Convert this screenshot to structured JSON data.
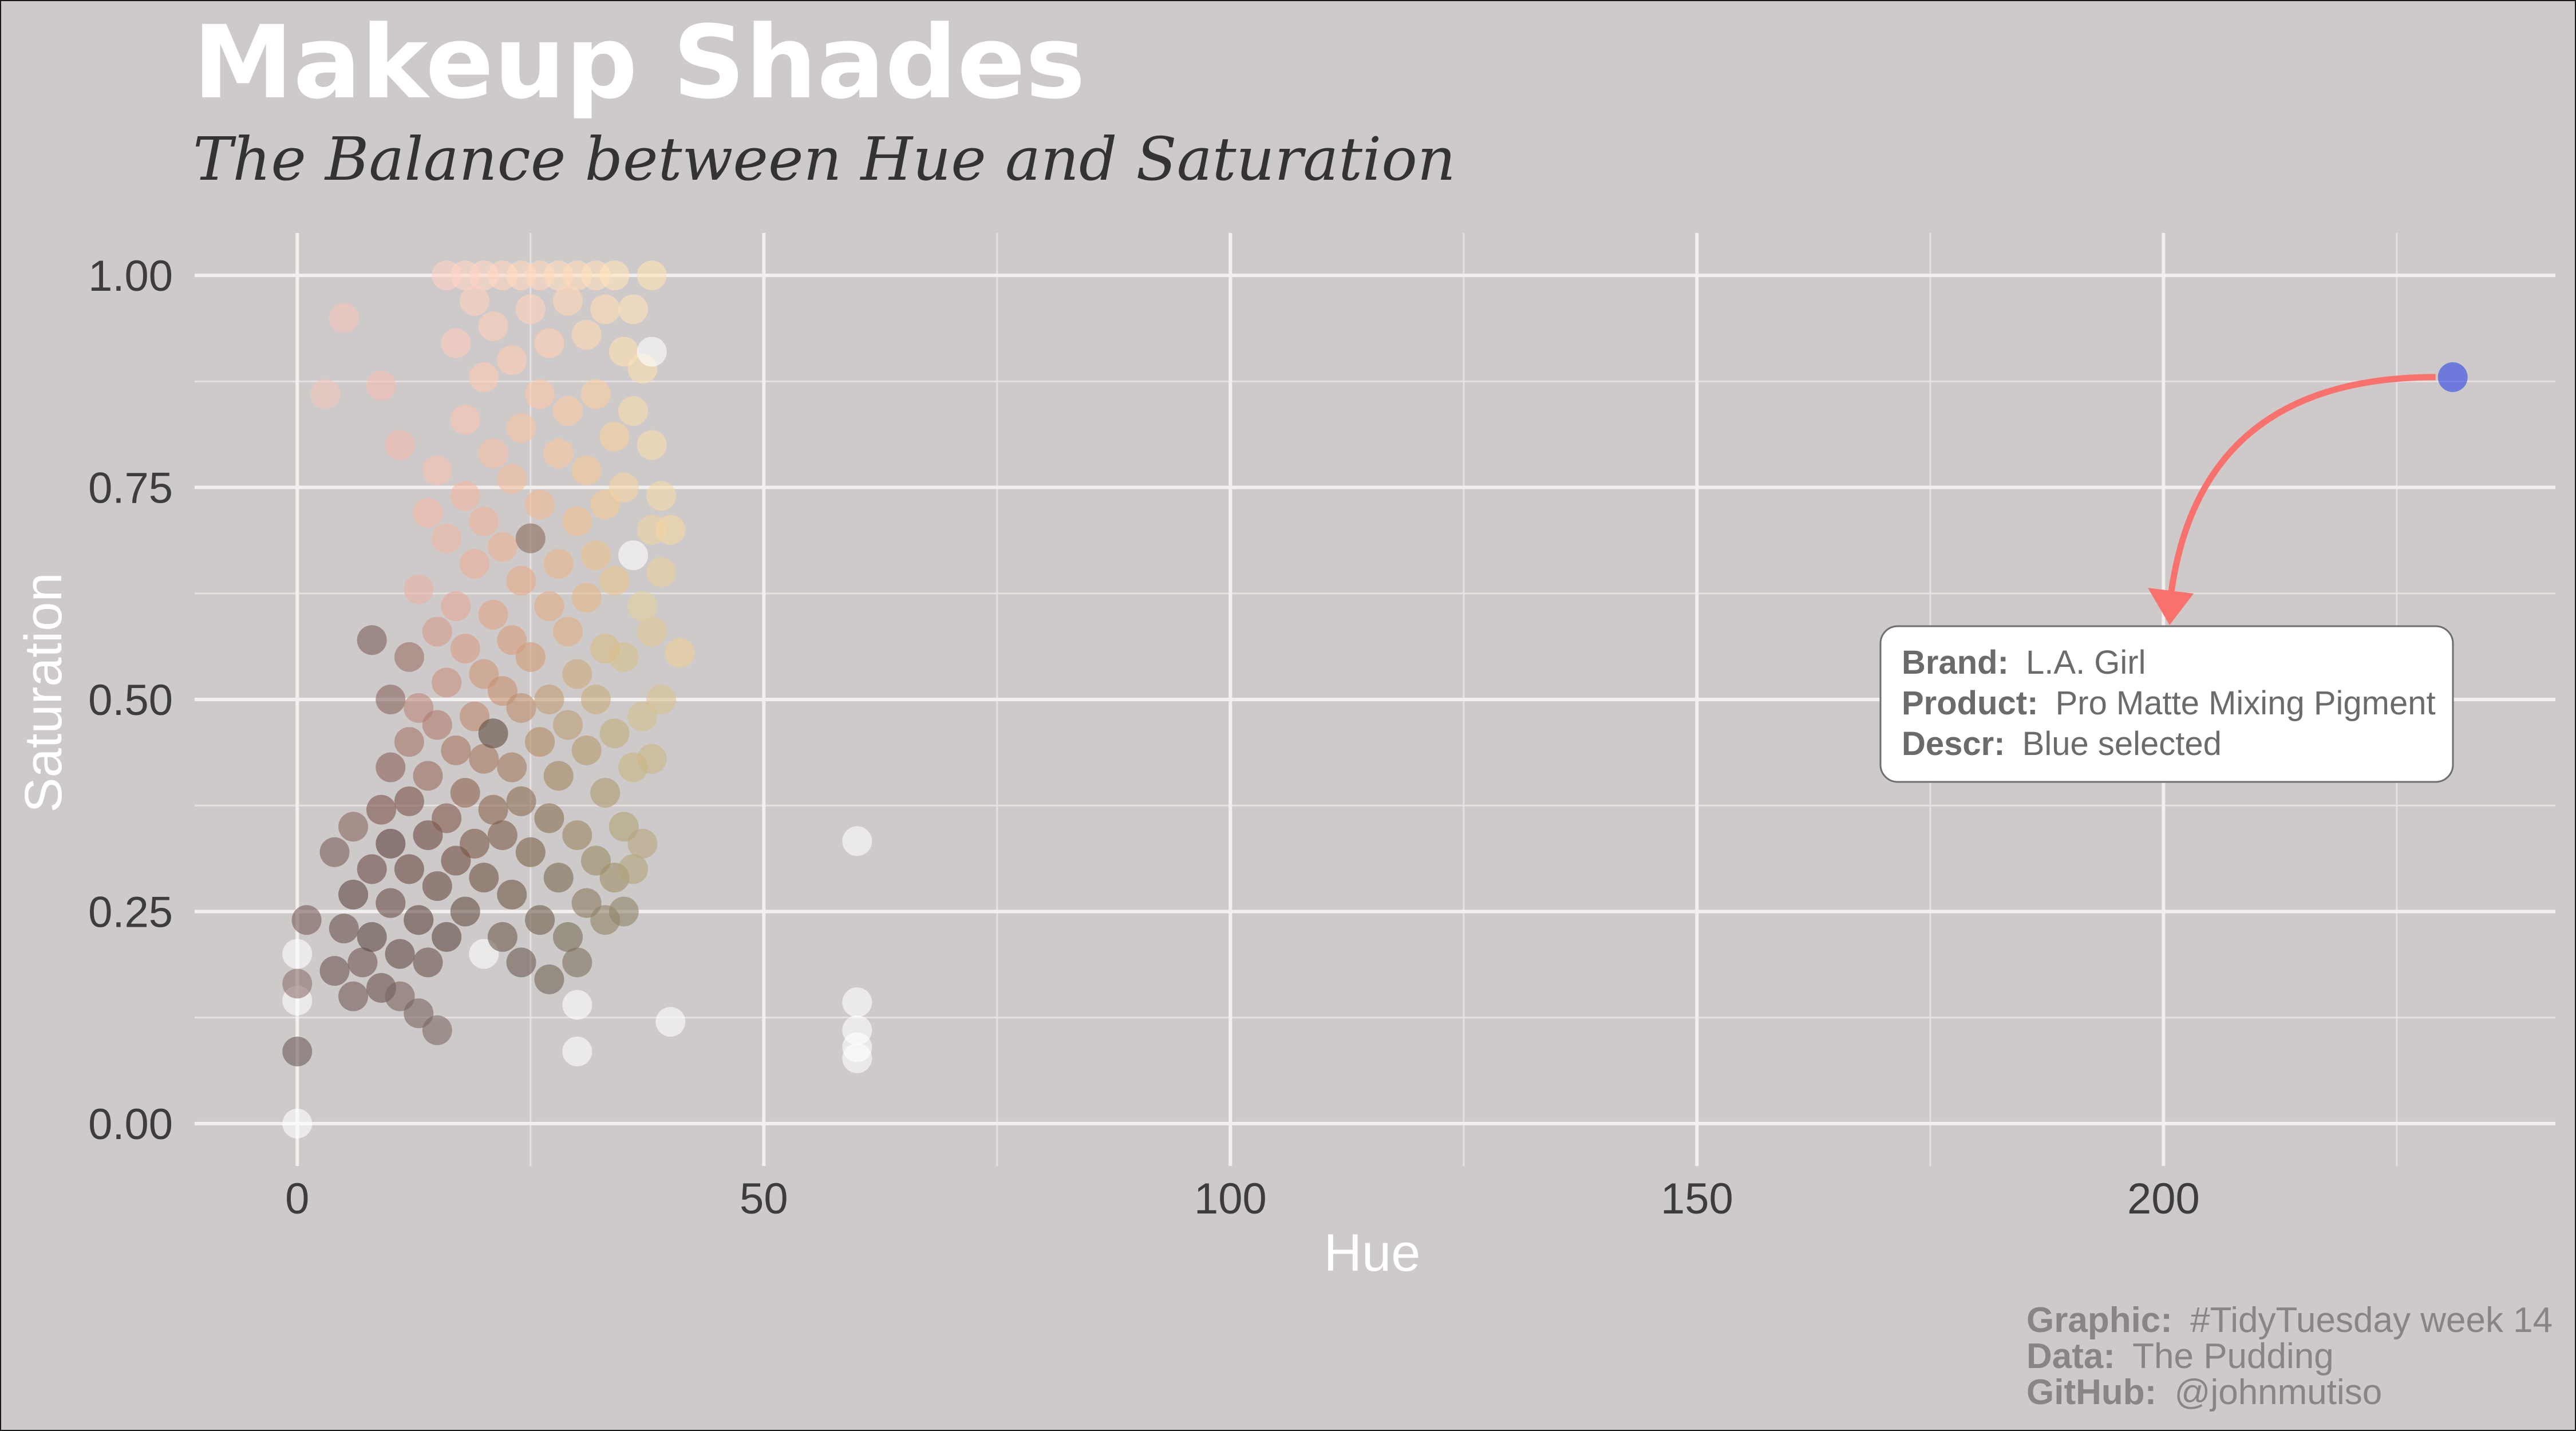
{
  "chart_data": {
    "type": "scatter",
    "title": "Makeup Shades",
    "subtitle": "The Balance between Hue and Saturation",
    "xlabel": "Hue",
    "ylabel": "Saturation",
    "xlim": [
      -11,
      242
    ],
    "ylim": [
      -0.05,
      1.05
    ],
    "x_ticks": [
      {
        "value": 0,
        "label": "0"
      },
      {
        "value": 50,
        "label": "50"
      },
      {
        "value": 100,
        "label": "100"
      },
      {
        "value": 150,
        "label": "150"
      },
      {
        "value": 200,
        "label": "200"
      }
    ],
    "y_ticks": [
      {
        "value": 0,
        "label": "0.00"
      },
      {
        "value": 0.25,
        "label": "0.25"
      },
      {
        "value": 0.5,
        "label": "0.50"
      },
      {
        "value": 0.75,
        "label": "0.75"
      },
      {
        "value": 1.0,
        "label": "1.00"
      }
    ],
    "grid": true,
    "point_opacity": 0.6,
    "background_color": "#cecac9",
    "points": [
      {
        "x": 0,
        "y": 0.0,
        "color": "#ffffff"
      },
      {
        "x": 0,
        "y": 0.085,
        "color": "#6e5c5a"
      },
      {
        "x": 0,
        "y": 0.145,
        "color": "#ffffff"
      },
      {
        "x": 0,
        "y": 0.165,
        "color": "#8d7270"
      },
      {
        "x": 0,
        "y": 0.2,
        "color": "#ffffff"
      },
      {
        "x": 1,
        "y": 0.24,
        "color": "#7a5a58"
      },
      {
        "x": 3,
        "y": 0.86,
        "color": "#f2c4bd"
      },
      {
        "x": 4,
        "y": 0.18,
        "color": "#6d5553"
      },
      {
        "x": 4,
        "y": 0.32,
        "color": "#7d5e5a"
      },
      {
        "x": 5,
        "y": 0.95,
        "color": "#f6c3bb"
      },
      {
        "x": 5,
        "y": 0.23,
        "color": "#6a5250"
      },
      {
        "x": 6,
        "y": 0.15,
        "color": "#735c59"
      },
      {
        "x": 6,
        "y": 0.27,
        "color": "#5f4644"
      },
      {
        "x": 6,
        "y": 0.35,
        "color": "#8a6863"
      },
      {
        "x": 7,
        "y": 0.19,
        "color": "#6f5552"
      },
      {
        "x": 8,
        "y": 0.3,
        "color": "#6c4b48"
      },
      {
        "x": 8,
        "y": 0.22,
        "color": "#5e4744"
      },
      {
        "x": 8,
        "y": 0.57,
        "color": "#7d5f5b"
      },
      {
        "x": 9,
        "y": 0.87,
        "color": "#f5bcb2"
      },
      {
        "x": 9,
        "y": 0.37,
        "color": "#7b544f"
      },
      {
        "x": 9,
        "y": 0.16,
        "color": "#6a514e"
      },
      {
        "x": 10,
        "y": 0.5,
        "color": "#8a6460"
      },
      {
        "x": 10,
        "y": 0.42,
        "color": "#8b5f59"
      },
      {
        "x": 10,
        "y": 0.33,
        "color": "#5e403d"
      },
      {
        "x": 10,
        "y": 0.26,
        "color": "#6a4c48"
      },
      {
        "x": 11,
        "y": 0.8,
        "color": "#f3b9ad"
      },
      {
        "x": 11,
        "y": 0.2,
        "color": "#634b47"
      },
      {
        "x": 11,
        "y": 0.15,
        "color": "#7a625e"
      },
      {
        "x": 12,
        "y": 0.55,
        "color": "#9b6f68"
      },
      {
        "x": 12,
        "y": 0.45,
        "color": "#a6746b"
      },
      {
        "x": 12,
        "y": 0.38,
        "color": "#7b514b"
      },
      {
        "x": 12,
        "y": 0.3,
        "color": "#6b4843"
      },
      {
        "x": 13,
        "y": 0.63,
        "color": "#e9b1a5"
      },
      {
        "x": 13,
        "y": 0.49,
        "color": "#b98679"
      },
      {
        "x": 13,
        "y": 0.24,
        "color": "#5e4641"
      },
      {
        "x": 13,
        "y": 0.13,
        "color": "#7a6460"
      },
      {
        "x": 14,
        "y": 0.72,
        "color": "#f6b8a9"
      },
      {
        "x": 14,
        "y": 0.41,
        "color": "#9a6a5f"
      },
      {
        "x": 14,
        "y": 0.34,
        "color": "#6e4a43"
      },
      {
        "x": 14,
        "y": 0.19,
        "color": "#6c534e"
      },
      {
        "x": 15,
        "y": 0.77,
        "color": "#f7c1b1"
      },
      {
        "x": 15,
        "y": 0.58,
        "color": "#d49a8a"
      },
      {
        "x": 15,
        "y": 0.47,
        "color": "#b07c6e"
      },
      {
        "x": 15,
        "y": 0.28,
        "color": "#6a4b44"
      },
      {
        "x": 15,
        "y": 0.11,
        "color": "#7d6864"
      },
      {
        "x": 16,
        "y": 1.0,
        "color": "#ffd2c6"
      },
      {
        "x": 16,
        "y": 0.69,
        "color": "#f1b6a3"
      },
      {
        "x": 16,
        "y": 0.52,
        "color": "#c98d7c"
      },
      {
        "x": 16,
        "y": 0.36,
        "color": "#82574c"
      },
      {
        "x": 16,
        "y": 0.22,
        "color": "#5d4741"
      },
      {
        "x": 17,
        "y": 0.92,
        "color": "#ffccbc"
      },
      {
        "x": 17,
        "y": 0.61,
        "color": "#e5a794"
      },
      {
        "x": 17,
        "y": 0.44,
        "color": "#a7745f"
      },
      {
        "x": 17,
        "y": 0.31,
        "color": "#704d43"
      },
      {
        "x": 18,
        "y": 1.0,
        "color": "#ffd3c4"
      },
      {
        "x": 18,
        "y": 0.83,
        "color": "#fbc4b0"
      },
      {
        "x": 18,
        "y": 0.74,
        "color": "#f3b8a2"
      },
      {
        "x": 18,
        "y": 0.56,
        "color": "#d99c86"
      },
      {
        "x": 18,
        "y": 0.39,
        "color": "#8e614f"
      },
      {
        "x": 18,
        "y": 0.25,
        "color": "#665046"
      },
      {
        "x": 19,
        "y": 0.97,
        "color": "#ffd0be"
      },
      {
        "x": 19,
        "y": 0.66,
        "color": "#ecae96"
      },
      {
        "x": 19,
        "y": 0.48,
        "color": "#bf8870"
      },
      {
        "x": 19,
        "y": 0.33,
        "color": "#7c5646"
      },
      {
        "x": 20,
        "y": 0.2,
        "color": "#ffffff"
      },
      {
        "x": 20,
        "y": 1.0,
        "color": "#ffd6c5"
      },
      {
        "x": 20,
        "y": 0.88,
        "color": "#fcc9b3"
      },
      {
        "x": 20,
        "y": 0.71,
        "color": "#f0b39a"
      },
      {
        "x": 20,
        "y": 0.53,
        "color": "#cf9479"
      },
      {
        "x": 20,
        "y": 0.43,
        "color": "#a6765e"
      },
      {
        "x": 20,
        "y": 0.29,
        "color": "#6f5243"
      },
      {
        "x": 21,
        "y": 0.94,
        "color": "#ffceb9"
      },
      {
        "x": 21,
        "y": 0.79,
        "color": "#f7bea5"
      },
      {
        "x": 21,
        "y": 0.6,
        "color": "#e0a487"
      },
      {
        "x": 21,
        "y": 0.46,
        "color": "#5f4b40"
      },
      {
        "x": 21,
        "y": 0.37,
        "color": "#8a6450"
      },
      {
        "x": 22,
        "y": 1.0,
        "color": "#ffd5c2"
      },
      {
        "x": 22,
        "y": 0.68,
        "color": "#eeb196"
      },
      {
        "x": 22,
        "y": 0.51,
        "color": "#c8906f"
      },
      {
        "x": 22,
        "y": 0.34,
        "color": "#7f5c48"
      },
      {
        "x": 22,
        "y": 0.22,
        "color": "#6c5a4f"
      },
      {
        "x": 23,
        "y": 0.9,
        "color": "#ffccb4"
      },
      {
        "x": 23,
        "y": 0.76,
        "color": "#f5bc9f"
      },
      {
        "x": 23,
        "y": 0.57,
        "color": "#d99e7e"
      },
      {
        "x": 23,
        "y": 0.42,
        "color": "#a47a5e"
      },
      {
        "x": 23,
        "y": 0.27,
        "color": "#6e5646"
      },
      {
        "x": 24,
        "y": 1.0,
        "color": "#ffd8c2"
      },
      {
        "x": 24,
        "y": 0.82,
        "color": "#f9c3a6"
      },
      {
        "x": 24,
        "y": 0.64,
        "color": "#e6a987"
      },
      {
        "x": 24,
        "y": 0.49,
        "color": "#bd8c6c"
      },
      {
        "x": 24,
        "y": 0.38,
        "color": "#8e6a51"
      },
      {
        "x": 24,
        "y": 0.19,
        "color": "#6d5c52"
      },
      {
        "x": 25,
        "y": 0.96,
        "color": "#ffd3bd"
      },
      {
        "x": 25,
        "y": 0.69,
        "color": "#8a6a5c"
      },
      {
        "x": 25,
        "y": 0.55,
        "color": "#d29b77"
      },
      {
        "x": 25,
        "y": 0.32,
        "color": "#7d6149"
      },
      {
        "x": 26,
        "y": 1.0,
        "color": "#ffd9c0"
      },
      {
        "x": 26,
        "y": 0.86,
        "color": "#fcc8a8"
      },
      {
        "x": 26,
        "y": 0.73,
        "color": "#f2b995"
      },
      {
        "x": 26,
        "y": 0.45,
        "color": "#b18a66"
      },
      {
        "x": 26,
        "y": 0.24,
        "color": "#6f5e4d"
      },
      {
        "x": 27,
        "y": 0.92,
        "color": "#ffd1b3"
      },
      {
        "x": 27,
        "y": 0.61,
        "color": "#e3aa83"
      },
      {
        "x": 27,
        "y": 0.5,
        "color": "#c39b75"
      },
      {
        "x": 27,
        "y": 0.36,
        "color": "#8b6e52"
      },
      {
        "x": 27,
        "y": 0.17,
        "color": "#706356"
      },
      {
        "x": 28,
        "y": 1.0,
        "color": "#ffdcc0"
      },
      {
        "x": 28,
        "y": 0.79,
        "color": "#f8c7a2"
      },
      {
        "x": 28,
        "y": 0.66,
        "color": "#ebb48a"
      },
      {
        "x": 28,
        "y": 0.41,
        "color": "#a48660"
      },
      {
        "x": 28,
        "y": 0.29,
        "color": "#7b6a52"
      },
      {
        "x": 29,
        "y": 0.97,
        "color": "#ffd7b9"
      },
      {
        "x": 29,
        "y": 0.84,
        "color": "#fbcca6"
      },
      {
        "x": 29,
        "y": 0.58,
        "color": "#dcae83"
      },
      {
        "x": 29,
        "y": 0.47,
        "color": "#bd9d73"
      },
      {
        "x": 29,
        "y": 0.22,
        "color": "#7a6c5a"
      },
      {
        "x": 30,
        "y": 0.14,
        "color": "#ffffff"
      },
      {
        "x": 30,
        "y": 0.085,
        "color": "#ffffff"
      },
      {
        "x": 30,
        "y": 1.0,
        "color": "#ffdcbc"
      },
      {
        "x": 30,
        "y": 0.71,
        "color": "#f1c090"
      },
      {
        "x": 30,
        "y": 0.53,
        "color": "#cfa97b"
      },
      {
        "x": 30,
        "y": 0.34,
        "color": "#9a845f"
      },
      {
        "x": 30,
        "y": 0.19,
        "color": "#7c6f5e"
      },
      {
        "x": 31,
        "y": 0.93,
        "color": "#ffd8b6"
      },
      {
        "x": 31,
        "y": 0.77,
        "color": "#f6c898"
      },
      {
        "x": 31,
        "y": 0.62,
        "color": "#e4b885"
      },
      {
        "x": 31,
        "y": 0.44,
        "color": "#b69a6e"
      },
      {
        "x": 31,
        "y": 0.26,
        "color": "#8a7a60"
      },
      {
        "x": 32,
        "y": 1.0,
        "color": "#ffe0bd"
      },
      {
        "x": 32,
        "y": 0.86,
        "color": "#fccfa2"
      },
      {
        "x": 32,
        "y": 0.67,
        "color": "#ecc18d"
      },
      {
        "x": 32,
        "y": 0.5,
        "color": "#c9ac7c"
      },
      {
        "x": 32,
        "y": 0.31,
        "color": "#998863"
      },
      {
        "x": 33,
        "y": 0.96,
        "color": "#ffdcb4"
      },
      {
        "x": 33,
        "y": 0.73,
        "color": "#f3c992"
      },
      {
        "x": 33,
        "y": 0.56,
        "color": "#d9ba86"
      },
      {
        "x": 33,
        "y": 0.39,
        "color": "#ad9a70"
      },
      {
        "x": 33,
        "y": 0.24,
        "color": "#8f8266"
      },
      {
        "x": 34,
        "y": 1.0,
        "color": "#ffe2ba"
      },
      {
        "x": 34,
        "y": 0.81,
        "color": "#f8d09c"
      },
      {
        "x": 34,
        "y": 0.64,
        "color": "#e7c48d"
      },
      {
        "x": 34,
        "y": 0.46,
        "color": "#c2ad7b"
      },
      {
        "x": 34,
        "y": 0.29,
        "color": "#9f9068"
      },
      {
        "x": 35,
        "y": 0.91,
        "color": "#fde0b4"
      },
      {
        "x": 35,
        "y": 0.75,
        "color": "#f3d3a1"
      },
      {
        "x": 35,
        "y": 0.55,
        "color": "#d7c08b"
      },
      {
        "x": 35,
        "y": 0.35,
        "color": "#b1a175"
      },
      {
        "x": 35,
        "y": 0.25,
        "color": "#8f8468"
      },
      {
        "x": 36,
        "y": 0.96,
        "color": "#fde3ba"
      },
      {
        "x": 36,
        "y": 0.84,
        "color": "#f8dcae"
      },
      {
        "x": 36,
        "y": 0.67,
        "color": "#ffffff"
      },
      {
        "x": 36,
        "y": 0.42,
        "color": "#c9b684"
      },
      {
        "x": 36,
        "y": 0.3,
        "color": "#b3a37b"
      },
      {
        "x": 37,
        "y": 0.89,
        "color": "#fce0b2"
      },
      {
        "x": 37,
        "y": 0.61,
        "color": "#e5d0a0"
      },
      {
        "x": 37,
        "y": 0.48,
        "color": "#d1bf8d"
      },
      {
        "x": 37,
        "y": 0.33,
        "color": "#b7a67e"
      },
      {
        "x": 38,
        "y": 1.0,
        "color": "#ffe2b4"
      },
      {
        "x": 38,
        "y": 0.91,
        "color": "#ffffff"
      },
      {
        "x": 38,
        "y": 0.8,
        "color": "#f7dcae"
      },
      {
        "x": 38,
        "y": 0.7,
        "color": "#efd2a1"
      },
      {
        "x": 38,
        "y": 0.58,
        "color": "#e2c894"
      },
      {
        "x": 38,
        "y": 0.43,
        "color": "#cbb585"
      },
      {
        "x": 39,
        "y": 0.74,
        "color": "#f3d8a8"
      },
      {
        "x": 39,
        "y": 0.65,
        "color": "#ead09c"
      },
      {
        "x": 39,
        "y": 0.5,
        "color": "#d9c290"
      },
      {
        "x": 40,
        "y": 0.12,
        "color": "#ffffff"
      },
      {
        "x": 40,
        "y": 0.7,
        "color": "#f5d7a2"
      },
      {
        "x": 41,
        "y": 0.555,
        "color": "#f0cf98"
      },
      {
        "x": 60,
        "y": 0.333,
        "color": "#ffffff"
      },
      {
        "x": 60,
        "y": 0.143,
        "color": "#ffffff"
      },
      {
        "x": 60,
        "y": 0.11,
        "color": "#ffffff"
      },
      {
        "x": 60,
        "y": 0.09,
        "color": "#ffffff"
      },
      {
        "x": 60,
        "y": 0.077,
        "color": "#ffffff"
      },
      {
        "x": 231,
        "y": 0.88,
        "color": "#2e45e8"
      }
    ],
    "annotation": {
      "target_x": 231,
      "target_y": 0.88,
      "lines": [
        {
          "key": "Brand:",
          "value": "L.A. Girl"
        },
        {
          "key": "Product:",
          "value": "Pro Matte Mixing Pigment"
        },
        {
          "key": "Descr:",
          "value": "Blue selected"
        }
      ],
      "arrow_color": "#f8716c"
    },
    "caption": [
      {
        "key": "Graphic:",
        "value": "#TidyTuesday week 14"
      },
      {
        "key": "Data:",
        "value": "The Pudding"
      },
      {
        "key": "GitHub:",
        "value": "@johnmutiso"
      }
    ]
  }
}
